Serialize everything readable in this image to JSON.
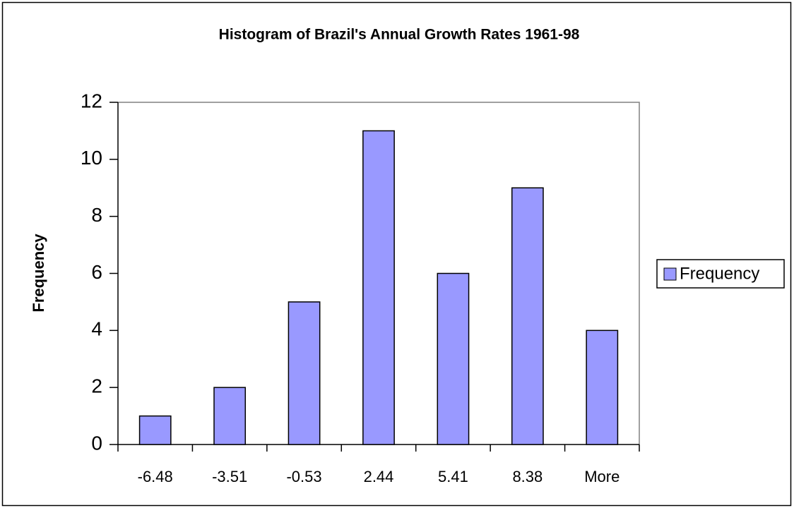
{
  "chart_data": {
    "type": "bar",
    "title": "Histogram of Brazil's Annual Growth Rates 1961-98",
    "y_label": "Frequency",
    "categories": [
      "-6.48",
      "-3.51",
      "-0.53",
      "2.44",
      "5.41",
      "8.38",
      "More"
    ],
    "series": [
      {
        "name": "Frequency",
        "color": "#9999ff",
        "values": [
          1,
          2,
          5,
          11,
          6,
          9,
          4
        ]
      }
    ],
    "ylim": [
      0,
      12
    ],
    "yticks": [
      0,
      2,
      4,
      6,
      8,
      10,
      12
    ],
    "grid": false,
    "legend": "right"
  }
}
